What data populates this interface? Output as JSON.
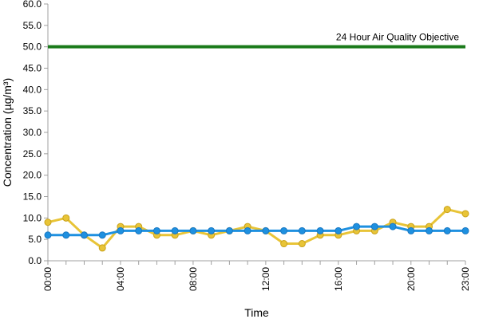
{
  "chart_data": {
    "type": "line",
    "xlabel": "Time",
    "ylabel": "Concentration (µg/m³)",
    "ylim": [
      0,
      60
    ],
    "yticks": [
      "0.0",
      "5.0",
      "10.0",
      "15.0",
      "20.0",
      "25.0",
      "30.0",
      "35.0",
      "40.0",
      "45.0",
      "50.0",
      "55.0",
      "60.0"
    ],
    "x": [
      "00:00",
      "01:00",
      "02:00",
      "03:00",
      "04:00",
      "05:00",
      "06:00",
      "07:00",
      "08:00",
      "09:00",
      "10:00",
      "11:00",
      "12:00",
      "13:00",
      "14:00",
      "15:00",
      "16:00",
      "17:00",
      "18:00",
      "19:00",
      "20:00",
      "21:00",
      "22:00",
      "23:00"
    ],
    "xtick_labels": [
      "00:00",
      "04:00",
      "08:00",
      "12:00",
      "16:00",
      "20:00",
      "23:00"
    ],
    "objective": {
      "value": 50,
      "label": "24 Hour Air Quality Objective",
      "color": "#1a7a1a"
    },
    "series": [
      {
        "color": "#e8c437",
        "values": [
          9,
          10,
          6,
          3,
          8,
          8,
          6,
          6,
          7,
          6,
          7,
          8,
          7,
          4,
          4,
          6,
          6,
          7,
          7,
          9,
          8,
          8,
          12,
          11
        ]
      },
      {
        "color": "#1e90e0",
        "values": [
          6,
          6,
          6,
          6,
          7,
          7,
          7,
          7,
          7,
          7,
          7,
          7,
          7,
          7,
          7,
          7,
          7,
          8,
          8,
          8,
          7,
          7,
          7,
          7
        ]
      }
    ]
  }
}
